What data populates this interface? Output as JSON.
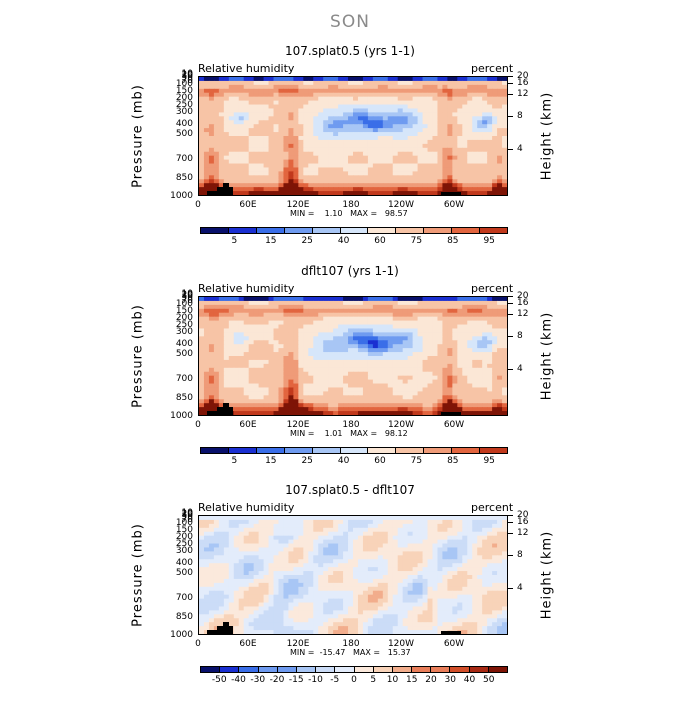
{
  "title": "SON",
  "ylabel_left": "Pressure (mb)",
  "ylabel_right": "Height (km)",
  "label_left": "Relative humidity",
  "label_right": "percent",
  "pressure_ticks": [
    "1000",
    "850",
    "700",
    "500",
    "400",
    "300",
    "250",
    "200",
    "150",
    "100",
    "70",
    "50",
    "30",
    "20",
    "10"
  ],
  "height_ticks": [
    "4",
    "8",
    "12",
    "16",
    "20"
  ],
  "x_ticks": [
    "0",
    "60E",
    "120E",
    "180",
    "120W",
    "60W"
  ],
  "panels": [
    {
      "title": "107.splat0.5 (yrs 1-1)",
      "minmax": "MIN =    1.10   MAX =   98.57",
      "colorbar": [
        "5",
        "15",
        "25",
        "40",
        "60",
        "75",
        "85",
        "95"
      ],
      "kind": "rh"
    },
    {
      "title": "dflt107 (yrs 1-1)",
      "minmax": "MIN =    1.01   MAX =   98.12",
      "colorbar": [
        "5",
        "15",
        "25",
        "40",
        "60",
        "75",
        "85",
        "95"
      ],
      "kind": "rh"
    },
    {
      "title": "107.splat0.5 - dflt107",
      "minmax": "MIN =  -15.47   MAX =   15.37",
      "colorbar": [
        "-50",
        "-40",
        "-30",
        "-20",
        "-15",
        "-10",
        "-5",
        "0",
        "5",
        "10",
        "15",
        "20",
        "30",
        "40",
        "50"
      ],
      "kind": "diff"
    }
  ],
  "colors": {
    "rh_scale": [
      "#08106b",
      "#1a2fd1",
      "#3a6ee8",
      "#6f9bf0",
      "#a8c6f5",
      "#d6e6fa",
      "#fbe7d6",
      "#f7c4a6",
      "#ef9b78",
      "#e2653f",
      "#c1391c",
      "#7e1406"
    ],
    "diff_scale": [
      "#08106b",
      "#1a2fd1",
      "#3a6ee8",
      "#6f9bf0",
      "#a8c6f5",
      "#cbdcf7",
      "#e3ecfb",
      "#fbe9dc",
      "#f8d3b9",
      "#f2ad8c",
      "#e97e5a",
      "#d24f2a",
      "#a82a14",
      "#7e1406"
    ]
  },
  "chart_data": [
    {
      "type": "heatmap",
      "title": "107.splat0.5 (yrs 1-1)",
      "xlabel": "",
      "ylabel": "Pressure (mb)",
      "y2label": "Height (km)",
      "x_ticks": [
        "0",
        "60E",
        "120E",
        "180",
        "120W",
        "60W"
      ],
      "y_ticks": [
        1000,
        850,
        700,
        500,
        400,
        300,
        250,
        200,
        150,
        100,
        70,
        50,
        30,
        20,
        10
      ],
      "units": "percent",
      "min": 1.1,
      "max": 98.57,
      "levels": [
        5,
        15,
        25,
        40,
        60,
        75,
        85,
        95
      ]
    },
    {
      "type": "heatmap",
      "title": "dflt107 (yrs 1-1)",
      "xlabel": "",
      "ylabel": "Pressure (mb)",
      "y2label": "Height (km)",
      "x_ticks": [
        "0",
        "60E",
        "120E",
        "180",
        "120W",
        "60W"
      ],
      "y_ticks": [
        1000,
        850,
        700,
        500,
        400,
        300,
        250,
        200,
        150,
        100,
        70,
        50,
        30,
        20,
        10
      ],
      "units": "percent",
      "min": 1.01,
      "max": 98.12,
      "levels": [
        5,
        15,
        25,
        40,
        60,
        75,
        85,
        95
      ]
    },
    {
      "type": "heatmap",
      "title": "107.splat0.5 - dflt107",
      "xlabel": "",
      "ylabel": "Pressure (mb)",
      "y2label": "Height (km)",
      "x_ticks": [
        "0",
        "60E",
        "120E",
        "180",
        "120W",
        "60W"
      ],
      "y_ticks": [
        1000,
        850,
        700,
        500,
        400,
        300,
        250,
        200,
        150,
        100,
        70,
        50,
        30,
        20,
        10
      ],
      "min": -15.47,
      "max": 15.37,
      "levels": [
        -50,
        -40,
        -30,
        -20,
        -15,
        -10,
        -5,
        0,
        5,
        10,
        15,
        20,
        30,
        40,
        50
      ]
    }
  ]
}
